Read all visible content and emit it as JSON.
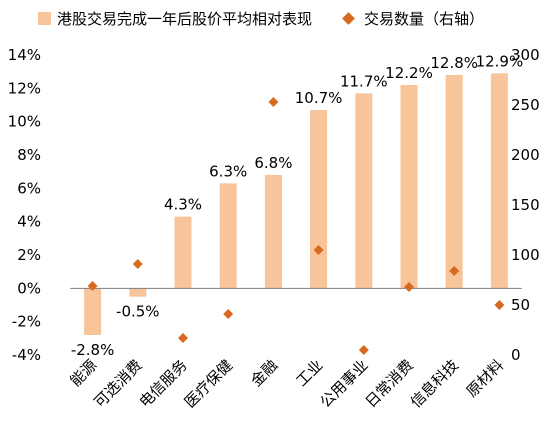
{
  "chart_data": {
    "type": "bar",
    "categories": [
      "能源",
      "可选消费",
      "电信服务",
      "医疗保健",
      "金融",
      "工业",
      "公用事业",
      "日常消费",
      "信息科技",
      "原材料"
    ],
    "series": [
      {
        "name": "港股交易完成一年后股价平均相对表现",
        "type": "bar",
        "axis": "left",
        "values": [
          -2.8,
          -0.5,
          4.3,
          6.3,
          6.8,
          10.7,
          11.7,
          12.2,
          12.8,
          12.9
        ],
        "labels": [
          "-2.8%",
          "-0.5%",
          "4.3%",
          "6.3%",
          "6.8%",
          "10.7%",
          "11.7%",
          "12.2%",
          "12.8%",
          "12.9%"
        ],
        "color": "#F8C49A"
      },
      {
        "name": "交易数量（右轴）",
        "type": "scatter",
        "axis": "right",
        "values": [
          69,
          91,
          17,
          41,
          253,
          105,
          5,
          68,
          84,
          50
        ],
        "color": "#D9691E"
      }
    ],
    "y_left": {
      "min": -4,
      "max": 14,
      "step": 2,
      "ticks": [
        "-4%",
        "-2%",
        "0%",
        "2%",
        "4%",
        "6%",
        "8%",
        "10%",
        "12%",
        "14%"
      ]
    },
    "y_right": {
      "min": 0,
      "max": 300,
      "step": 50,
      "ticks": [
        "0",
        "50",
        "100",
        "150",
        "200",
        "250",
        "300"
      ]
    },
    "grid": false,
    "legend_position": "top"
  }
}
